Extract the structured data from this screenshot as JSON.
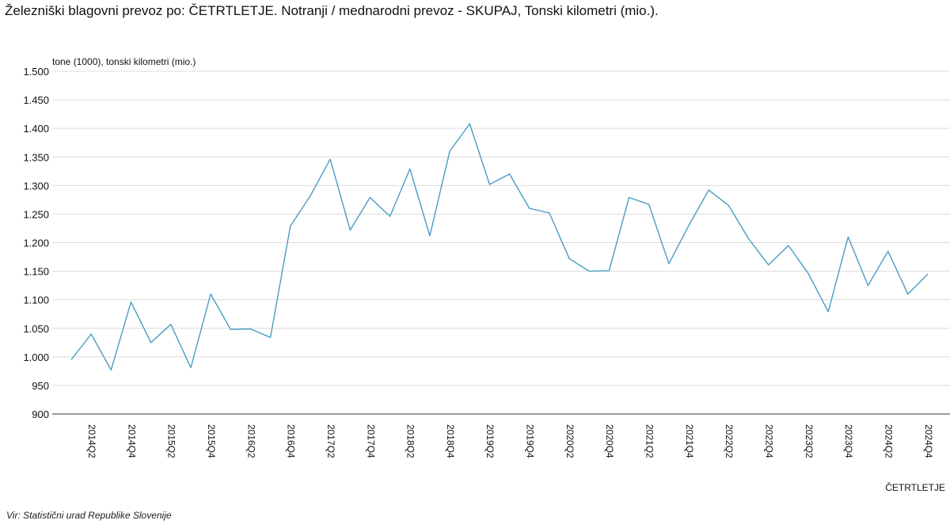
{
  "page": {
    "title": "Železniški blagovni prevoz po: ČETRTLETJE. Notranji / mednarodni prevoz - SKUPAJ, Tonski kilometri (mio.).",
    "source": "Vir: Statistični urad Republike Slovenije"
  },
  "chart_data": {
    "type": "line",
    "title": "Železniški blagovni prevoz po: ČETRTLETJE. Notranji / mednarodni prevoz - SKUPAJ, Tonski kilometri (mio.).",
    "ylabel": "tone (1000), tonski kilometri (mio.)",
    "xlabel": "ČETRTLETJE",
    "ylim": [
      900,
      1500
    ],
    "yticks": [
      900,
      950,
      1000,
      1050,
      1100,
      1150,
      1200,
      1250,
      1300,
      1350,
      1400,
      1450,
      1500
    ],
    "ytick_labels": [
      "900",
      "950",
      "1.000",
      "1.050",
      "1.100",
      "1.150",
      "1.200",
      "1.250",
      "1.300",
      "1.350",
      "1.400",
      "1.450",
      "1.500"
    ],
    "grid": true,
    "line_color": "#4a9cc4",
    "x": [
      "2014Q1",
      "2014Q2",
      "2014Q3",
      "2014Q4",
      "2015Q1",
      "2015Q2",
      "2015Q3",
      "2015Q4",
      "2016Q1",
      "2016Q2",
      "2016Q3",
      "2016Q4",
      "2017Q1",
      "2017Q2",
      "2017Q3",
      "2017Q4",
      "2018Q1",
      "2018Q2",
      "2018Q3",
      "2018Q4",
      "2019Q1",
      "2019Q2",
      "2019Q3",
      "2019Q4",
      "2020Q1",
      "2020Q2",
      "2020Q3",
      "2020Q4",
      "2021Q1",
      "2021Q2",
      "2021Q3",
      "2021Q4",
      "2022Q1",
      "2022Q2",
      "2022Q3",
      "2022Q4",
      "2023Q1",
      "2023Q2",
      "2023Q3",
      "2023Q4",
      "2024Q1",
      "2024Q2",
      "2024Q3",
      "2024Q4"
    ],
    "xtick_labels": [
      "2014Q2",
      "2014Q4",
      "2015Q2",
      "2015Q4",
      "2016Q2",
      "2016Q4",
      "2017Q2",
      "2017Q4",
      "2018Q2",
      "2018Q4",
      "2019Q2",
      "2019Q4",
      "2020Q2",
      "2020Q4",
      "2021Q2",
      "2021Q4",
      "2022Q2",
      "2022Q4",
      "2023Q2",
      "2023Q4",
      "2024Q2",
      "2024Q4"
    ],
    "series": [
      {
        "values": [
          995,
          1040,
          977,
          1096,
          1025,
          1057,
          981,
          1110,
          1048,
          1049,
          1034,
          1229,
          1282,
          1346,
          1222,
          1279,
          1246,
          1329,
          1212,
          1360,
          1408,
          1302,
          1320,
          1260,
          1252,
          1172,
          1150,
          1151,
          1279,
          1267,
          1163,
          1230,
          1292,
          1265,
          1207,
          1161,
          1195,
          1146,
          1079,
          1210,
          1125,
          1185,
          1110,
          1145
        ]
      }
    ]
  }
}
